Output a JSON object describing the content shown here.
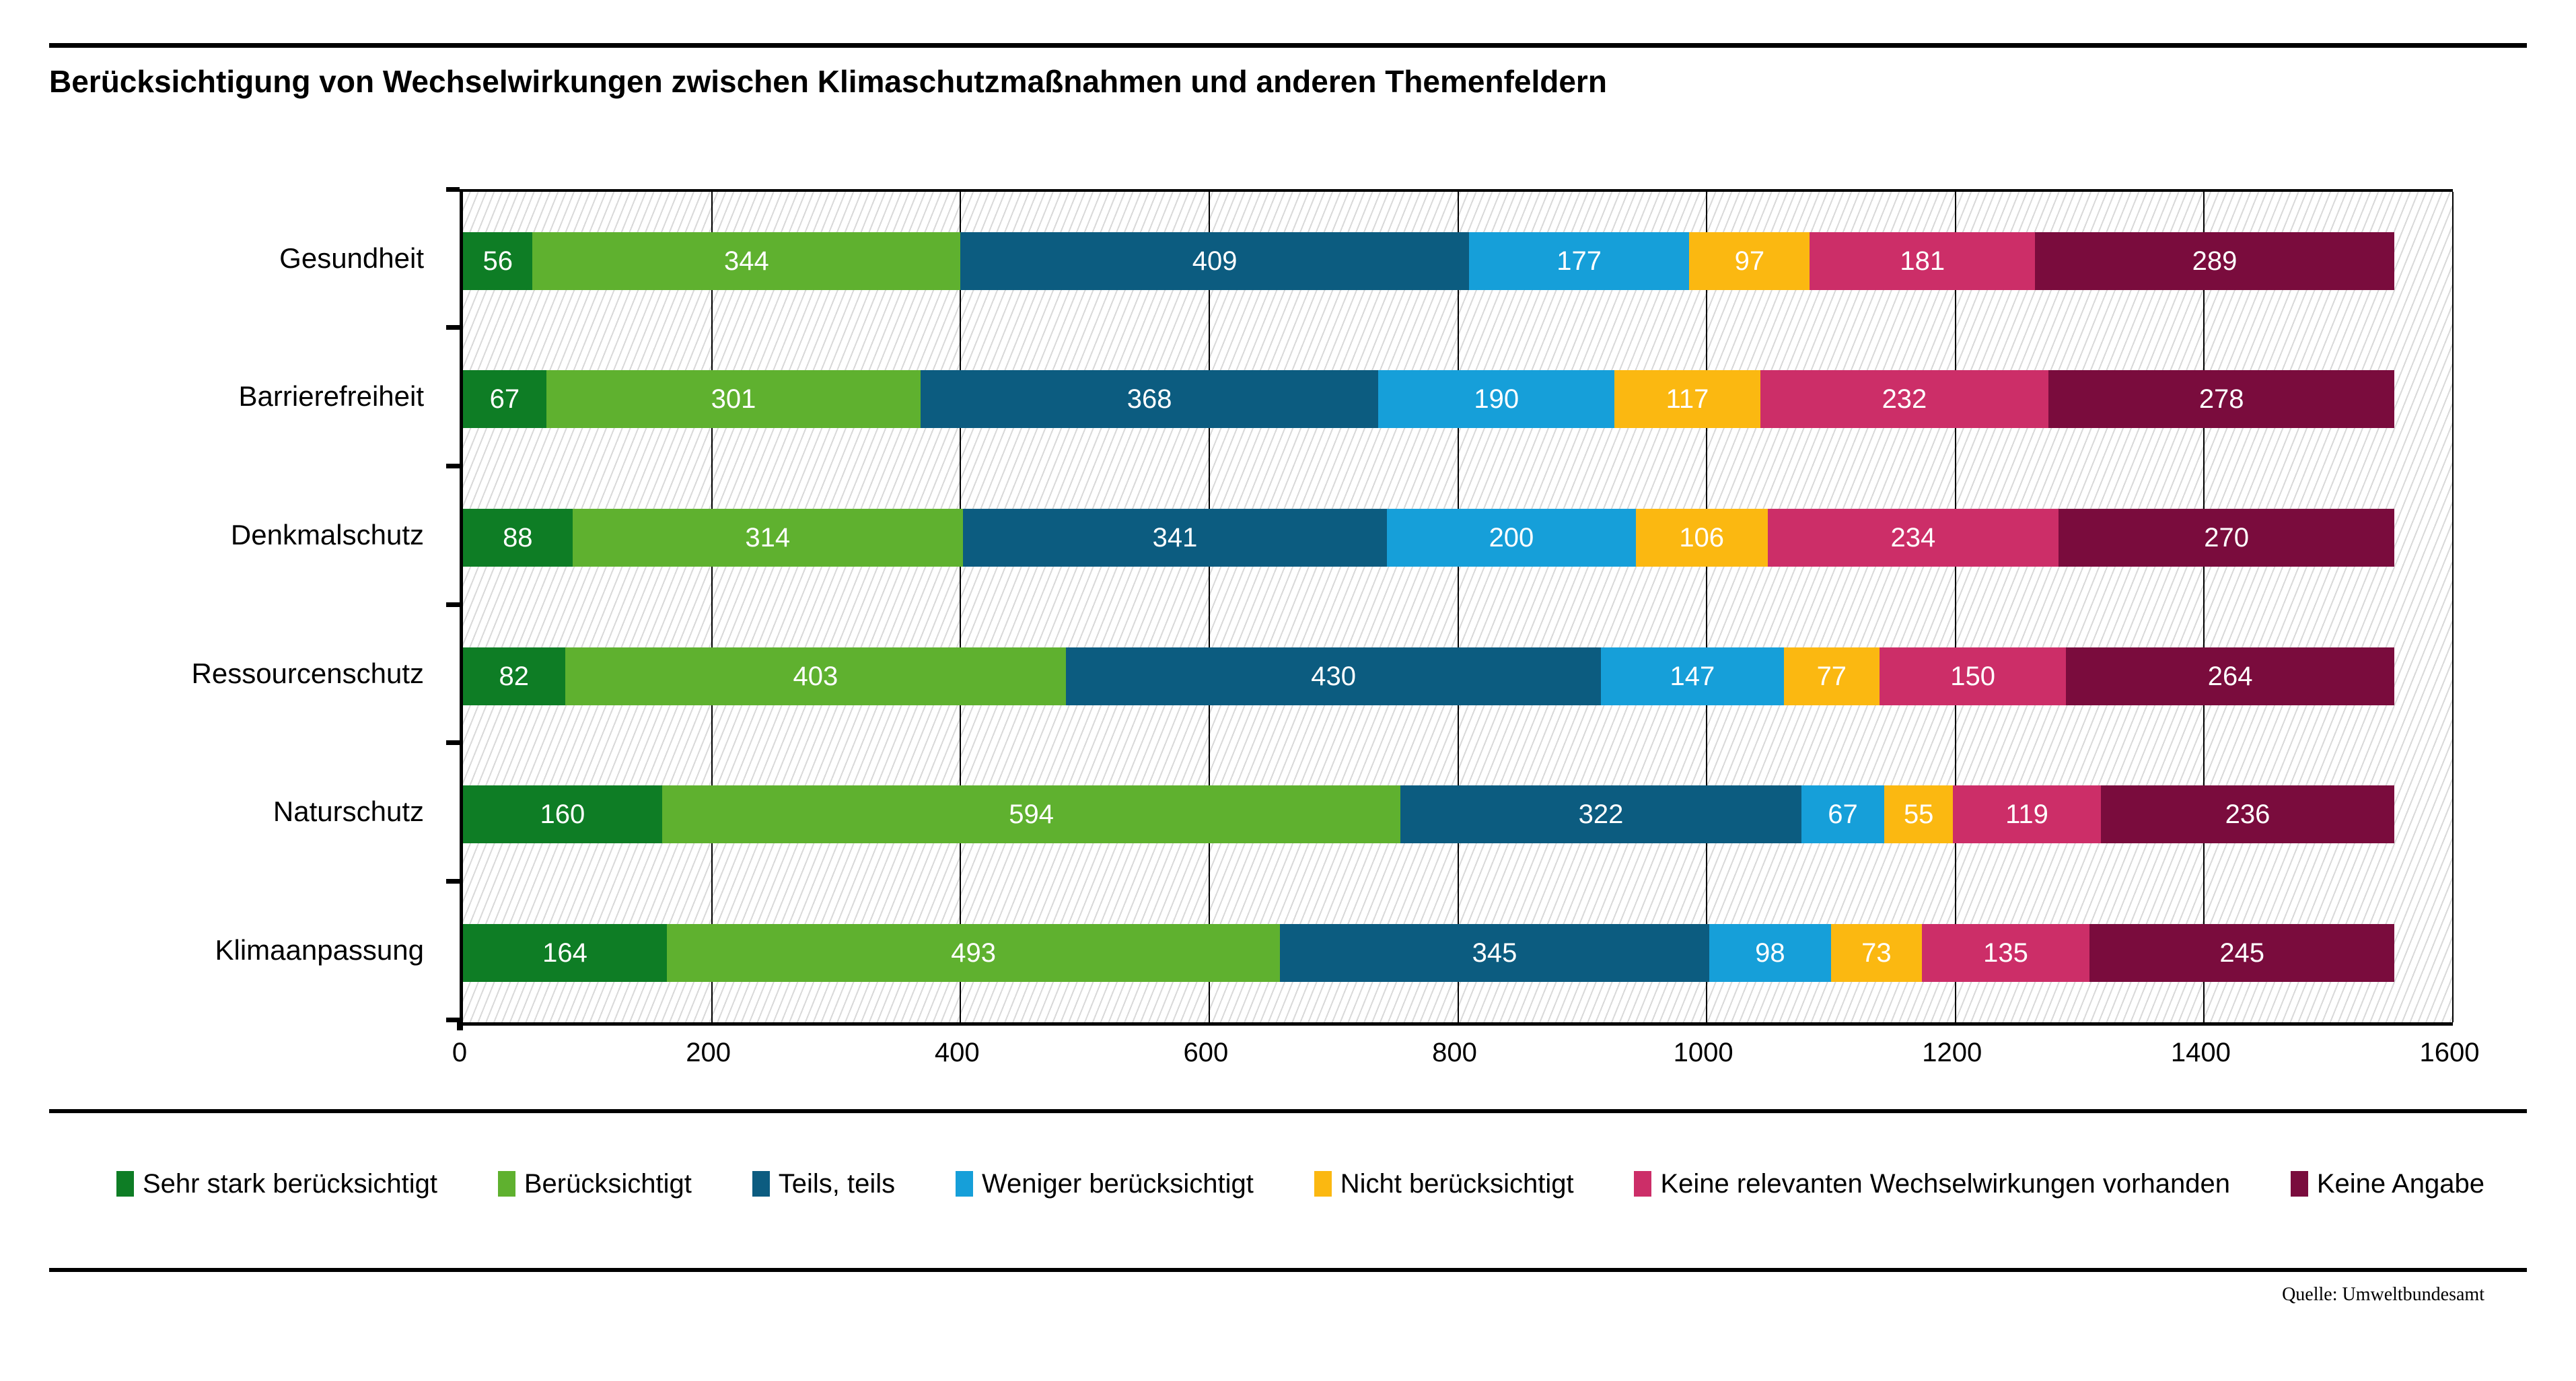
{
  "title": "Berücksichtigung von Wechselwirkungen zwischen Klimaschutzmaßnahmen und anderen Themenfeldern",
  "source": "Quelle: Umweltbundesamt",
  "chart_data": {
    "type": "bar",
    "orientation": "horizontal-stacked",
    "title": "Berücksichtigung von Wechselwirkungen zwischen Klimaschutzmaßnahmen und anderen Themenfeldern",
    "categories": [
      "Gesundheit",
      "Barrierefreiheit",
      "Denkmalschutz",
      "Ressourcenschutz",
      "Naturschutz",
      "Klimaanpassung"
    ],
    "series": [
      {
        "name": "Sehr stark berücksichtigt",
        "color": "#0e7d25",
        "values": [
          56,
          67,
          88,
          82,
          160,
          164
        ]
      },
      {
        "name": "Berücksichtigt",
        "color": "#5fb12f",
        "values": [
          344,
          301,
          314,
          403,
          594,
          493
        ]
      },
      {
        "name": "Teils, teils",
        "color": "#0c5c80",
        "values": [
          409,
          368,
          341,
          430,
          322,
          345
        ]
      },
      {
        "name": "Weniger berücksichtigt",
        "color": "#169fd9",
        "values": [
          177,
          190,
          200,
          147,
          67,
          98
        ]
      },
      {
        "name": "Nicht berücksichtigt",
        "color": "#fbb811",
        "values": [
          97,
          117,
          106,
          77,
          55,
          73
        ]
      },
      {
        "name": "Keine relevanten Wechselwirkungen vorhanden",
        "color": "#cc2e68",
        "values": [
          181,
          232,
          234,
          150,
          119,
          135
        ]
      },
      {
        "name": "Keine Angabe",
        "color": "#7a0c3d",
        "values": [
          289,
          278,
          270,
          264,
          236,
          245
        ]
      }
    ],
    "xlabel": "",
    "ylabel": "",
    "xlim": [
      0,
      1600
    ],
    "x_ticks": [
      0,
      200,
      400,
      600,
      800,
      1000,
      1200,
      1400,
      1600
    ],
    "grid": "vertical",
    "legend_position": "bottom",
    "value_labels": "inside-white"
  }
}
